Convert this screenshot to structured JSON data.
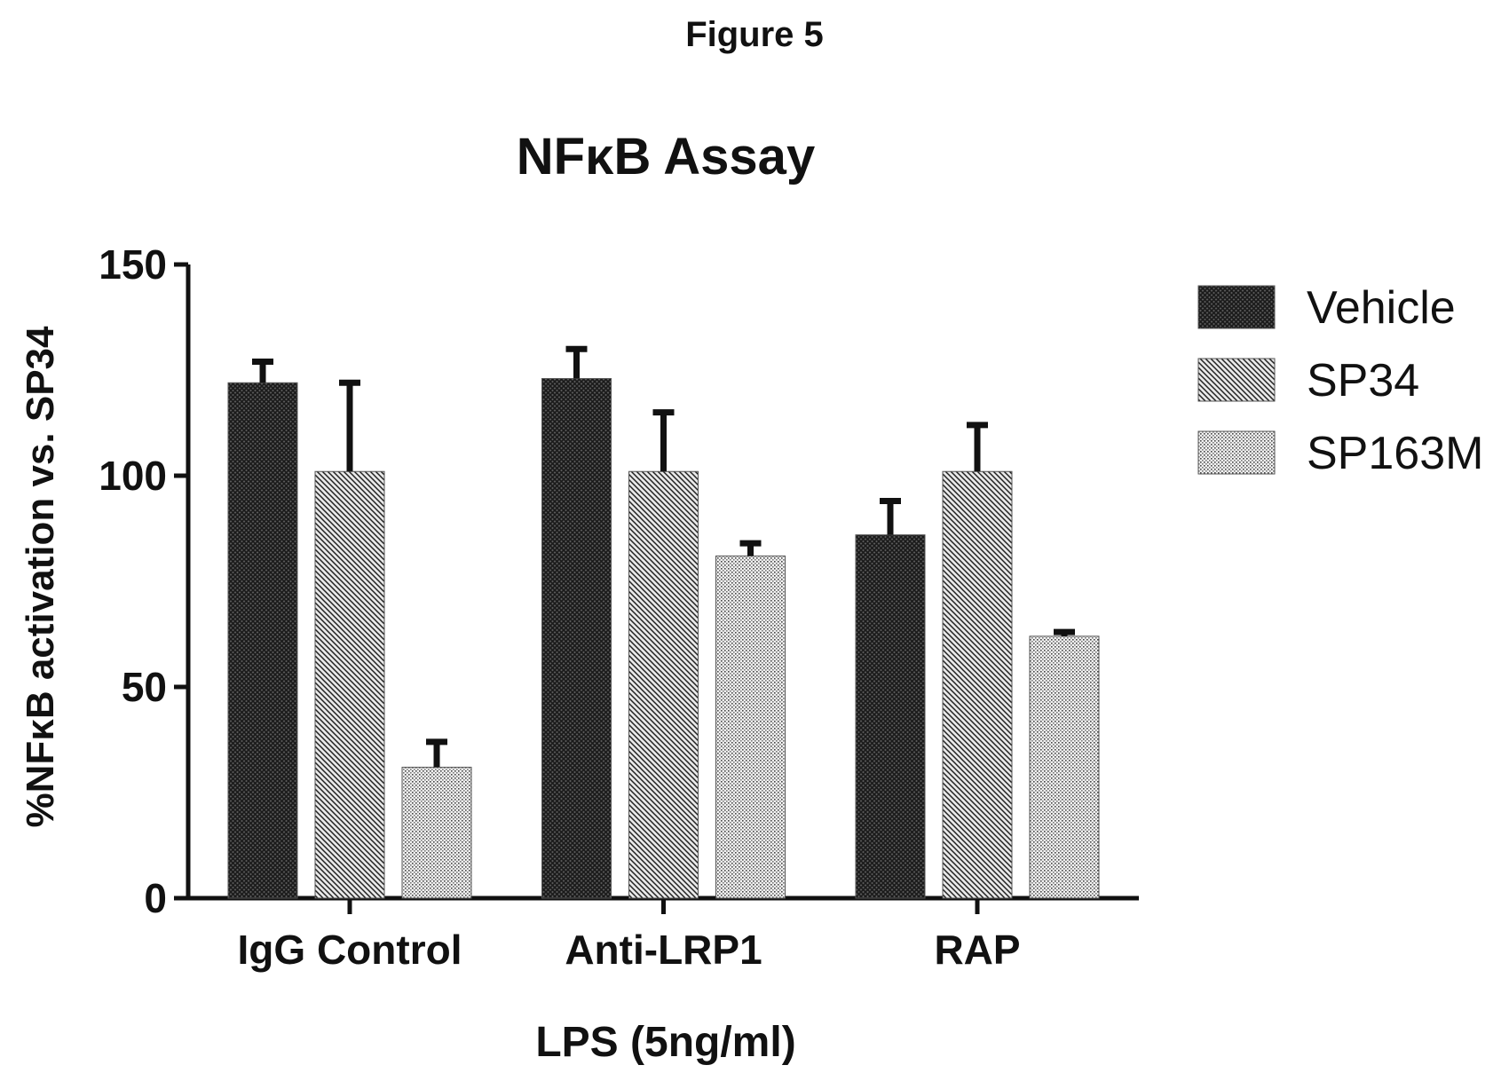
{
  "figure_label": "Figure 5",
  "chart_data": {
    "type": "bar",
    "title": "NFκB Assay",
    "xlabel": "LPS (5ng/ml)",
    "ylabel": "%NFκB activation vs. SP34",
    "ylim": [
      0,
      150
    ],
    "yticks": [
      "0",
      "50",
      "100",
      "150"
    ],
    "categories": [
      "IgG Control",
      "Anti-LRP1",
      "RAP"
    ],
    "series": [
      {
        "name": "Vehicle",
        "values": [
          122,
          123,
          86
        ],
        "errors": [
          5,
          7,
          8
        ],
        "pattern": "crosshatch-dark"
      },
      {
        "name": "SP34",
        "values": [
          101,
          101,
          101
        ],
        "errors": [
          21,
          14,
          11
        ],
        "pattern": "diagonal"
      },
      {
        "name": "SP163M",
        "values": [
          31,
          81,
          62
        ],
        "errors": [
          6,
          3,
          1
        ],
        "pattern": "dots-light"
      }
    ],
    "legend_position": "right",
    "grid": false
  }
}
